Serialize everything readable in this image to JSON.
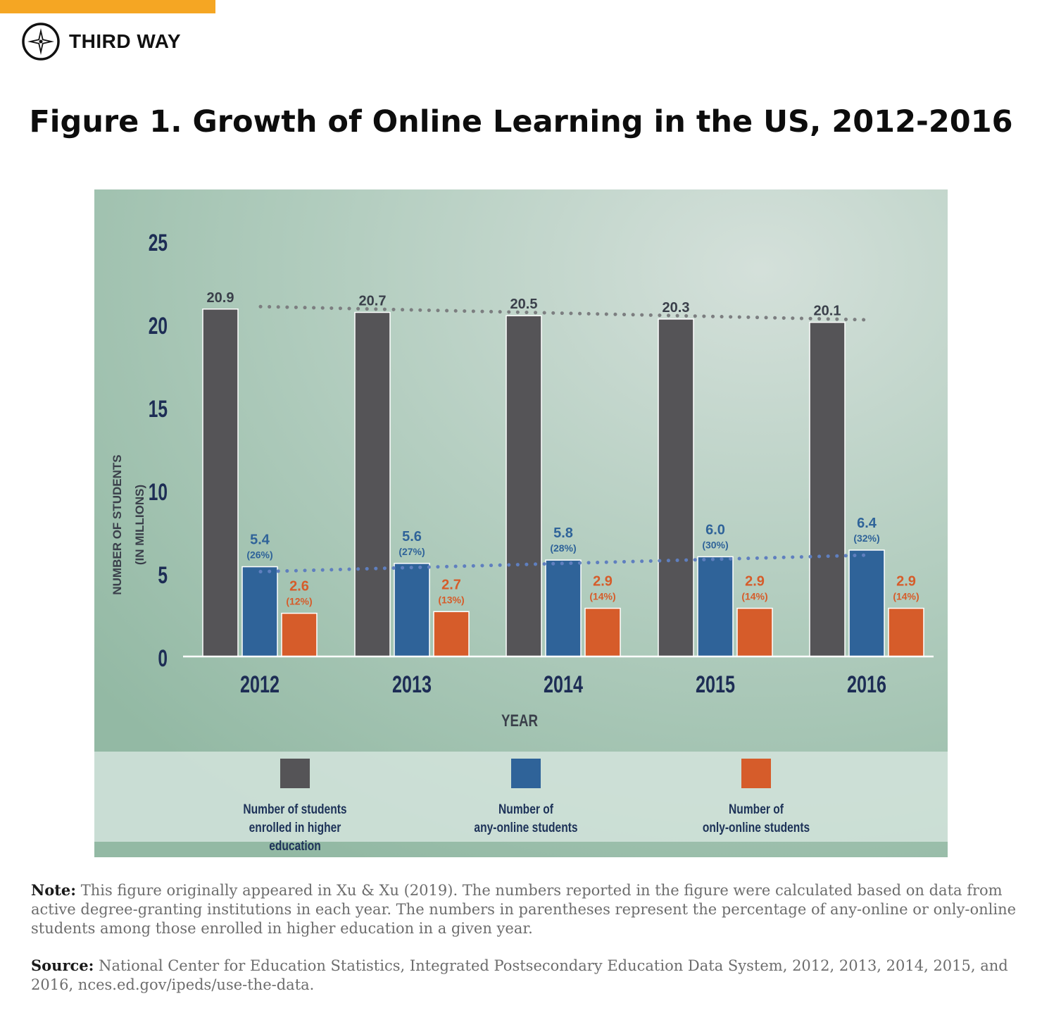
{
  "brand": {
    "name": "THIRD WAY"
  },
  "figure_title": "Figure 1. Growth of Online Learning in the US, 2012-2016",
  "colors": {
    "enrolled": "#555457",
    "any_online": "#2f6399",
    "only_online": "#d65c2a",
    "accent": "#f5a623"
  },
  "chart_data": {
    "type": "bar",
    "categories": [
      "2012",
      "2013",
      "2014",
      "2015",
      "2016"
    ],
    "series": [
      {
        "name": "Number of students enrolled in higher education",
        "values": [
          20.9,
          20.7,
          20.5,
          20.3,
          20.1
        ],
        "labels": [
          "20.9",
          "20.7",
          "20.5",
          "20.3",
          "20.1"
        ]
      },
      {
        "name": "Number of any-online students",
        "values": [
          5.4,
          5.6,
          5.8,
          6.0,
          6.4
        ],
        "labels": [
          "5.4",
          "5.6",
          "5.8",
          "6.0",
          "6.4"
        ],
        "pct_labels": [
          "(26%)",
          "(27%)",
          "(28%)",
          "(30%)",
          "(32%)"
        ]
      },
      {
        "name": "Number of only-online students",
        "values": [
          2.6,
          2.7,
          2.9,
          2.9,
          2.9
        ],
        "labels": [
          "2.6",
          "2.7",
          "2.9",
          "2.9",
          "2.9"
        ],
        "pct_labels": [
          "(12%)",
          "(13%)",
          "(14%)",
          "(14%)",
          "(14%)"
        ]
      }
    ],
    "trendlines": [
      "enrolled",
      "any_online"
    ],
    "ylabel_line1": "NUMBER OF STUDENTS",
    "ylabel_line2": "(IN MILLIONS)",
    "xlabel": "YEAR",
    "ylim": [
      0,
      25
    ],
    "yticks": [
      "0",
      "5",
      "10",
      "15",
      "20",
      "25"
    ],
    "ytick_values": [
      0,
      5,
      10,
      15,
      20,
      25
    ]
  },
  "legend": [
    {
      "line1": "Number of students",
      "line2": "enrolled in higher education"
    },
    {
      "line1": "Number of",
      "line2": "any-online students"
    },
    {
      "line1": "Number of",
      "line2": "only-online students"
    }
  ],
  "note": {
    "label": "Note:",
    "text": "This figure originally appeared in Xu & Xu (2019). The numbers reported in the figure were calculated based on data from active degree-granting institutions in each year. The numbers in parentheses represent the percentage of any-online or only-online students among those enrolled in higher education in a given year."
  },
  "source": {
    "label": "Source:",
    "text": "National Center for Education Statistics, Integrated Postsecondary Education Data System, 2012, 2013, 2014, 2015, and 2016, nces.ed.gov/ipeds/use-the-data."
  }
}
